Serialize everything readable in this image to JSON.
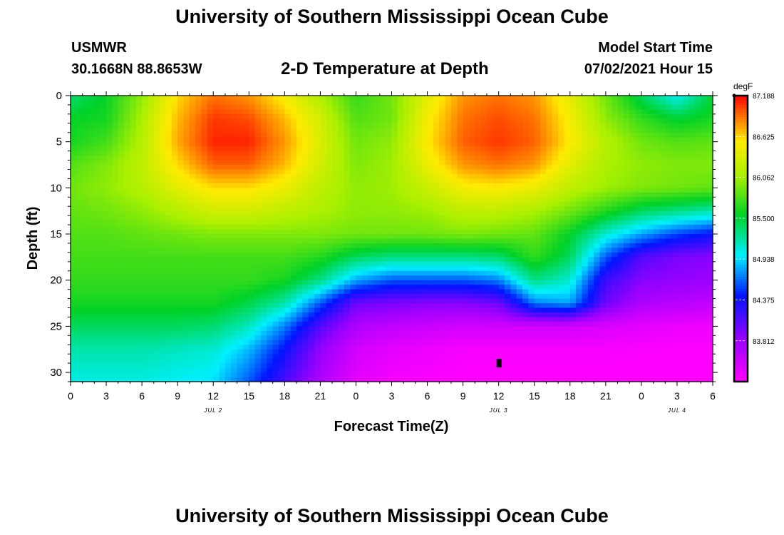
{
  "header": {
    "title": "University of Southern Mississippi Ocean Cube",
    "station": "USMWR",
    "coords": "30.1668N  88.8653W",
    "plot_title": "2-D Temperature at Depth",
    "model_start_label": "Model Start Time",
    "model_start_time": "07/02/2021 Hour 15"
  },
  "footer": {
    "title": "University of Southern Mississippi Ocean Cube"
  },
  "chart_data": {
    "type": "heatmap",
    "title": "2-D Temperature at Depth",
    "xlabel": "Forecast Time(Z)",
    "ylabel": "Depth (ft)",
    "x_range_hours": [
      0,
      54
    ],
    "x_ticks": [
      {
        "h": 0,
        "label": "0"
      },
      {
        "h": 3,
        "label": "3"
      },
      {
        "h": 6,
        "label": "6"
      },
      {
        "h": 9,
        "label": "9"
      },
      {
        "h": 12,
        "label": "12"
      },
      {
        "h": 15,
        "label": "15"
      },
      {
        "h": 18,
        "label": "18"
      },
      {
        "h": 21,
        "label": "21"
      },
      {
        "h": 24,
        "label": "0"
      },
      {
        "h": 27,
        "label": "3"
      },
      {
        "h": 30,
        "label": "6"
      },
      {
        "h": 33,
        "label": "9"
      },
      {
        "h": 36,
        "label": "12"
      },
      {
        "h": 39,
        "label": "15"
      },
      {
        "h": 42,
        "label": "18"
      },
      {
        "h": 45,
        "label": "21"
      },
      {
        "h": 48,
        "label": "0"
      },
      {
        "h": 51,
        "label": "3"
      },
      {
        "h": 54,
        "label": "6"
      }
    ],
    "date_labels": [
      {
        "h": 12,
        "label": "JUL 2"
      },
      {
        "h": 36,
        "label": "JUL 3"
      },
      {
        "h": 51,
        "label": "JUL 4"
      }
    ],
    "y_range_ft": [
      0,
      31
    ],
    "y_ticks": [
      0,
      5,
      10,
      15,
      20,
      25,
      30
    ],
    "colorbar": {
      "units": "degF",
      "min": 83.25,
      "max": 87.188,
      "tick_labels": [
        "87.188",
        "86.625",
        "86.062",
        "85.500",
        "84.938",
        "84.375",
        "83.812"
      ],
      "tick_values": [
        87.188,
        86.625,
        86.062,
        85.5,
        84.938,
        84.375,
        83.812
      ]
    },
    "marker": {
      "h": 36,
      "depth_ft": 29
    },
    "grid_columns_hours": [
      0,
      3,
      6,
      9,
      12,
      15,
      18,
      21,
      24,
      27,
      30,
      33,
      36,
      39,
      42,
      45,
      48,
      51,
      54
    ],
    "grid_rows_depth_ft": [
      0,
      2.5,
      5,
      7.5,
      10,
      12.5,
      15,
      17.5,
      20,
      22.5,
      25,
      27.5,
      31
    ],
    "temperature_degF": [
      [
        85.35,
        85.55,
        86.0,
        86.6,
        86.9,
        86.8,
        86.5,
        86.1,
        85.7,
        85.9,
        86.4,
        86.8,
        86.9,
        86.8,
        86.4,
        85.9,
        85.4,
        85.0,
        85.5
      ],
      [
        85.55,
        85.6,
        86.1,
        86.7,
        87.05,
        87.0,
        86.7,
        86.3,
        85.8,
        85.9,
        86.5,
        86.9,
        87.0,
        86.9,
        86.5,
        86.0,
        85.7,
        85.5,
        85.6
      ],
      [
        85.6,
        85.75,
        86.15,
        86.75,
        87.1,
        87.1,
        86.8,
        86.35,
        85.9,
        86.0,
        86.55,
        86.95,
        87.05,
        86.95,
        86.55,
        86.15,
        85.9,
        85.8,
        85.85
      ],
      [
        85.8,
        85.95,
        86.2,
        86.6,
        86.95,
        86.95,
        86.7,
        86.3,
        85.95,
        86.05,
        86.45,
        86.8,
        86.9,
        86.8,
        86.4,
        86.1,
        86.0,
        85.95,
        85.95
      ],
      [
        85.9,
        86.0,
        86.15,
        86.4,
        86.6,
        86.6,
        86.45,
        86.2,
        86.0,
        86.05,
        86.25,
        86.5,
        86.55,
        86.45,
        86.2,
        86.05,
        85.95,
        85.9,
        85.85
      ],
      [
        85.85,
        85.9,
        86.0,
        86.15,
        86.3,
        86.3,
        86.2,
        86.1,
        86.0,
        86.0,
        86.05,
        86.2,
        86.2,
        86.1,
        85.9,
        85.65,
        85.4,
        85.3,
        85.2
      ],
      [
        85.8,
        85.8,
        85.85,
        85.9,
        85.95,
        85.95,
        85.95,
        85.95,
        85.9,
        85.9,
        85.9,
        85.95,
        85.9,
        85.85,
        85.55,
        85.1,
        84.8,
        84.55,
        84.4
      ],
      [
        85.75,
        85.75,
        85.75,
        85.75,
        85.75,
        85.75,
        85.75,
        85.65,
        85.4,
        85.3,
        85.3,
        85.3,
        85.35,
        85.7,
        85.4,
        84.6,
        84.1,
        83.95,
        83.9
      ],
      [
        85.7,
        85.7,
        85.7,
        85.7,
        85.7,
        85.7,
        85.6,
        85.3,
        84.8,
        84.6,
        84.6,
        84.6,
        84.7,
        85.3,
        85.1,
        84.2,
        83.9,
        83.85,
        83.8
      ],
      [
        85.6,
        85.6,
        85.6,
        85.6,
        85.6,
        85.45,
        85.2,
        84.6,
        84.0,
        83.95,
        83.9,
        83.9,
        84.0,
        84.7,
        84.8,
        84.0,
        83.7,
        83.65,
        83.6
      ],
      [
        85.4,
        85.4,
        85.4,
        85.4,
        85.35,
        85.15,
        84.7,
        84.1,
        83.7,
        83.6,
        83.55,
        83.5,
        83.5,
        83.5,
        83.5,
        83.45,
        83.4,
        83.35,
        83.35
      ],
      [
        85.2,
        85.2,
        85.2,
        85.15,
        85.1,
        84.85,
        84.4,
        83.85,
        83.5,
        83.4,
        83.35,
        83.3,
        83.3,
        83.3,
        83.3,
        83.3,
        83.28,
        83.27,
        83.27
      ],
      [
        85.05,
        85.05,
        85.05,
        85.0,
        84.95,
        84.6,
        84.15,
        83.7,
        83.4,
        83.3,
        83.28,
        83.26,
        83.25,
        83.25,
        83.25,
        83.25,
        83.25,
        83.25,
        83.25
      ]
    ]
  }
}
